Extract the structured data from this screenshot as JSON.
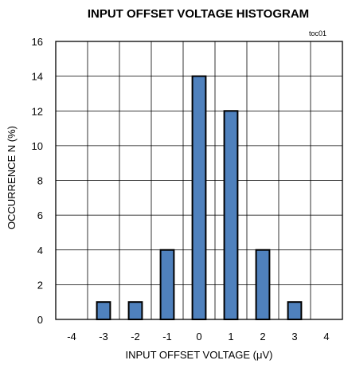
{
  "chart_data": {
    "type": "bar",
    "title": "INPUT OFFSET VOLTAGE HISTOGRAM",
    "annotation": "toc01",
    "xlabel": "INPUT OFFSET VOLTAGE (μV)",
    "ylabel": "OCCURRENCE N (%)",
    "categories": [
      "-4",
      "-3",
      "-2",
      "-1",
      "0",
      "1",
      "2",
      "3",
      "4"
    ],
    "values": [
      0,
      1,
      1,
      4,
      14,
      12,
      4,
      1,
      0
    ],
    "yticks": [
      "0",
      "2",
      "4",
      "6",
      "8",
      "10",
      "12",
      "14",
      "16"
    ],
    "ylim": [
      0,
      16
    ],
    "grid": true,
    "bar_color": "#4f81bd",
    "bar_edge_color": "#000000"
  }
}
